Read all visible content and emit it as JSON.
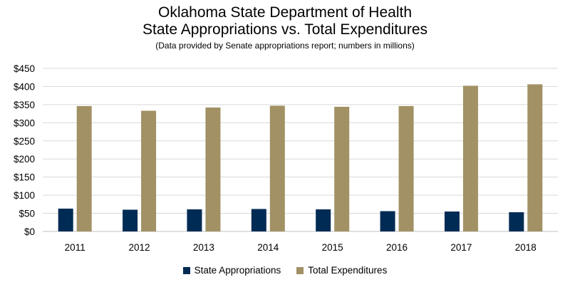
{
  "chart_data": {
    "type": "bar",
    "title": "Oklahoma State Department of Health",
    "subtitle_line": "State Appropriations vs. Total Expenditures",
    "note": "(Data provided by Senate appropriations report; numbers in millions)",
    "categories": [
      "2011",
      "2012",
      "2013",
      "2014",
      "2015",
      "2016",
      "2017",
      "2018"
    ],
    "series": [
      {
        "name": "State Appropriations",
        "color": "#002b54",
        "values": [
          63,
          60,
          61,
          62,
          61,
          56,
          55,
          53
        ]
      },
      {
        "name": "Total Expenditures",
        "color": "#a19164",
        "values": [
          346,
          333,
          342,
          347,
          344,
          346,
          402,
          406
        ]
      }
    ],
    "yticks": [
      "$0",
      "$50",
      "$100",
      "$150",
      "$200",
      "$250",
      "$300",
      "$350",
      "$400",
      "$450"
    ],
    "ytick_values": [
      0,
      50,
      100,
      150,
      200,
      250,
      300,
      350,
      400,
      450
    ],
    "ylim": [
      0,
      450
    ],
    "grid": true,
    "legend_position": "bottom",
    "xlabel": "",
    "ylabel": ""
  }
}
